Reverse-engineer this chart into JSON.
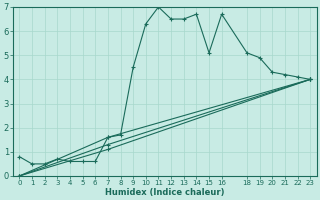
{
  "xlabel": "Humidex (Indice chaleur)",
  "ylabel": "",
  "xlim": [
    -0.5,
    23.5
  ],
  "ylim": [
    0,
    7
  ],
  "xtick_positions": [
    0,
    1,
    2,
    3,
    4,
    5,
    6,
    7,
    8,
    9,
    10,
    11,
    12,
    13,
    14,
    15,
    16,
    18,
    19,
    20,
    21,
    22,
    23
  ],
  "xtick_labels": [
    "0",
    "1",
    "2",
    "3",
    "4",
    "5",
    "6",
    "7",
    "8",
    "9",
    "10",
    "11",
    "12",
    "13",
    "14",
    "15",
    "16",
    "18",
    "19",
    "20",
    "21",
    "22",
    "23"
  ],
  "yticks": [
    0,
    1,
    2,
    3,
    4,
    5,
    6,
    7
  ],
  "bg_color": "#c8ebe4",
  "line_color": "#1a6b5a",
  "grid_color": "#a8d8cc",
  "lines": [
    {
      "x": [
        0,
        1,
        2,
        3,
        4,
        5,
        6,
        7,
        8,
        9,
        10,
        11,
        12,
        13,
        14,
        15,
        16,
        18,
        19,
        20,
        21,
        22,
        23
      ],
      "y": [
        0.8,
        0.5,
        0.5,
        0.7,
        0.6,
        0.6,
        0.6,
        1.6,
        1.7,
        4.5,
        6.3,
        7.0,
        6.5,
        6.5,
        6.7,
        5.1,
        6.7,
        5.1,
        4.9,
        4.3,
        4.2,
        4.1,
        4.0
      ]
    },
    {
      "x": [
        0,
        7,
        23
      ],
      "y": [
        0.0,
        1.6,
        4.0
      ]
    },
    {
      "x": [
        0,
        7,
        23
      ],
      "y": [
        0.0,
        1.3,
        4.0
      ]
    },
    {
      "x": [
        0,
        7,
        23
      ],
      "y": [
        0.0,
        1.1,
        4.0
      ]
    }
  ]
}
